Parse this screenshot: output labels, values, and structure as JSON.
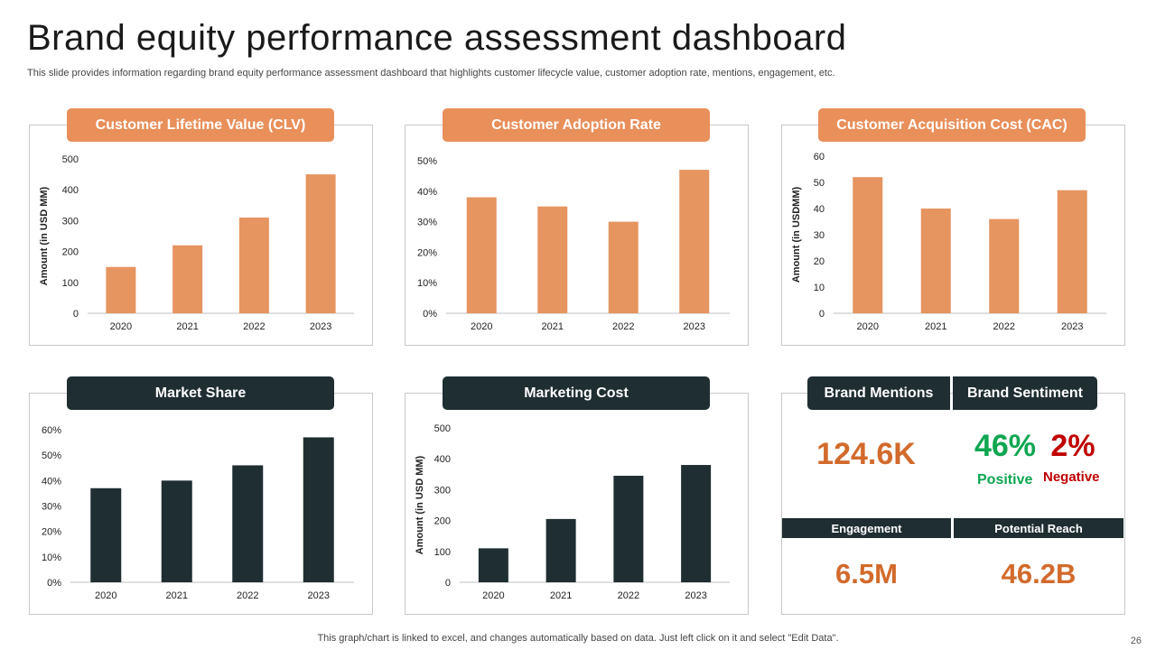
{
  "title": "Brand equity performance assessment dashboard",
  "subtitle": "This slide provides information regarding brand equity performance assessment dashboard that highlights customer lifecycle value, customer adoption rate, mentions, engagement, etc.",
  "footer": "This graph/chart is linked to excel,  and changes automatically based on data. Just left click on it and select \"Edit Data\".",
  "page_number": "26",
  "colors": {
    "orange": "#e98f5a",
    "bar_orange": "#e69460",
    "dark": "#1e2e31",
    "kpi_orange": "#d26a2c",
    "green": "#0ea650",
    "red": "#c00000"
  },
  "headers": {
    "clv": "Customer Lifetime Value (CLV)",
    "adoption": "Customer Adoption Rate",
    "cac": "Customer Acquisition Cost (CAC)",
    "market_share": "Market Share",
    "marketing_cost": "Marketing Cost",
    "brand_mentions": "Brand Mentions",
    "brand_sentiment": "Brand Sentiment",
    "engagement": "Engagement",
    "potential_reach": "Potential Reach"
  },
  "kpis": {
    "mentions": "124.6K",
    "positive_value": "46%",
    "positive_label": "Positive",
    "negative_value": "2%",
    "negative_label": "Negative",
    "engagement": "6.5M",
    "reach": "46.2B"
  },
  "chart_data": [
    {
      "id": "clv",
      "type": "bar",
      "color": "orange",
      "categories": [
        "2020",
        "2021",
        "2022",
        "2023"
      ],
      "values": [
        150,
        220,
        310,
        450
      ],
      "ylabel": "Amount (in USD MM)",
      "yticks": [
        "0",
        "100",
        "200",
        "300",
        "400",
        "500"
      ],
      "ylim": [
        0,
        500
      ],
      "grid": false
    },
    {
      "id": "adoption",
      "type": "bar",
      "color": "orange",
      "categories": [
        "2020",
        "2021",
        "2022",
        "2023"
      ],
      "values": [
        38,
        35,
        30,
        47
      ],
      "ylabel": "",
      "yticks": [
        "0%",
        "10%",
        "20%",
        "30%",
        "40%",
        "50%"
      ],
      "ylim": [
        0,
        50
      ],
      "grid": false
    },
    {
      "id": "cac",
      "type": "bar",
      "color": "orange",
      "categories": [
        "2020",
        "2021",
        "2022",
        "2023"
      ],
      "values": [
        52,
        40,
        36,
        47
      ],
      "ylabel": "Amount (in USDMM)",
      "yticks": [
        "0",
        "10",
        "20",
        "30",
        "40",
        "50",
        "60"
      ],
      "ylim": [
        0,
        60
      ],
      "grid": false
    },
    {
      "id": "market_share",
      "type": "bar",
      "color": "dark",
      "categories": [
        "2020",
        "2021",
        "2022",
        "2023"
      ],
      "values": [
        37,
        40,
        46,
        57
      ],
      "ylabel": "",
      "yticks": [
        "0%",
        "10%",
        "20%",
        "30%",
        "40%",
        "50%",
        "60%"
      ],
      "ylim": [
        0,
        60
      ],
      "grid": false
    },
    {
      "id": "marketing_cost",
      "type": "bar",
      "color": "dark",
      "categories": [
        "2020",
        "2021",
        "2022",
        "2023"
      ],
      "values": [
        110,
        205,
        345,
        380
      ],
      "ylabel": "Amount (in USD MM)",
      "yticks": [
        "0",
        "100",
        "200",
        "300",
        "400",
        "500"
      ],
      "ylim": [
        0,
        500
      ],
      "grid": false
    }
  ]
}
